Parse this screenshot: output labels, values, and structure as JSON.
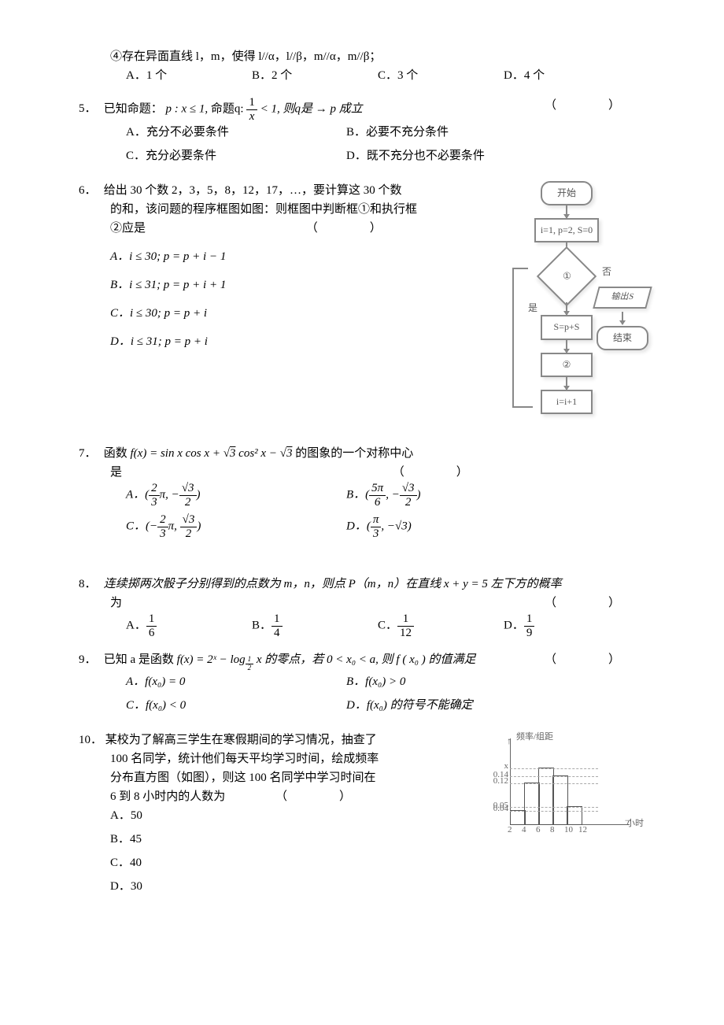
{
  "q4_cont": {
    "line1": "④存在异面直线 l，m，使得 l//α，l//β，m//α，m//β；",
    "A": "A．1 个",
    "B": "B．2 个",
    "C": "C．3 个",
    "D": "D．4 个"
  },
  "q5": {
    "num": "5．",
    "text_pre": "已知命题：",
    "p": "p : x ≤ 1,",
    "q_pre": "命题q:",
    "frac_n": "1",
    "frac_d": "x",
    "q_post": "< 1, 则q是 → p 成立",
    "A": "A．充分不必要条件",
    "B": "B．必要不充分条件",
    "C": "C．充分必要条件",
    "D": "D．既不充分也不必要条件",
    "paren": "（　　）"
  },
  "q6": {
    "num": "6．",
    "line1": "给出 30 个数 2，3，5，8，12，17，…，要计算这 30 个数",
    "line2": "的和，该问题的程序框图如图：则框图中判断框①和执行框",
    "line3": "②应是",
    "paren": "（　　）",
    "A": "A．i ≤ 30; p = p + i − 1",
    "B": "B．i ≤ 31; p = p + i + 1",
    "C": "C．i ≤ 30; p = p + i",
    "D": "D．i ≤ 31; p = p + i",
    "flow": {
      "start": "开始",
      "init": "i=1, p=2, S=0",
      "diamond": "①",
      "yes": "是",
      "no": "否",
      "sum": "S=p+S",
      "box2": "②",
      "inc": "i=i+1",
      "out": "输出S",
      "end": "结束"
    }
  },
  "q7": {
    "num": "7．",
    "text_pre": "函数 ",
    "fx": "f(x) = sin x cos x + √3 cos² x − √3",
    "text_post": " 的图象的一个对称中心",
    "line2": "是",
    "paren": "（　　）",
    "A_pre": "A．(",
    "A_n1": "2",
    "A_d1": "3",
    "A_mid": "π, −",
    "A_n2": "√3",
    "A_d2": "2",
    "A_post": ")",
    "B_pre": "B．(",
    "B_n1": "5π",
    "B_d1": "6",
    "B_mid": ", −",
    "B_n2": "√3",
    "B_d2": "2",
    "B_post": ")",
    "C_pre": "C．(−",
    "C_n1": "2",
    "C_d1": "3",
    "C_mid": "π, ",
    "C_n2": "√3",
    "C_d2": "2",
    "C_post": ")",
    "D_pre": "D．(",
    "D_n1": "π",
    "D_d1": "3",
    "D_mid": ", −√3)"
  },
  "q8": {
    "num": "8．",
    "text": "连续掷两次骰子分别得到的点数为 m，n，则点 P（m，n）在直线 x + y = 5 左下方的概率",
    "line2": "为",
    "paren": "（　　）",
    "A_n": "1",
    "A_d": "6",
    "A_l": "A．",
    "B_n": "1",
    "B_d": "4",
    "B_l": "B．",
    "C_n": "1",
    "C_d": "12",
    "C_l": "C．",
    "D_n": "1",
    "D_d": "9",
    "D_l": "D．"
  },
  "q9": {
    "num": "9．",
    "text_pre": "已知 a 是函数 ",
    "fx": "f(x) = 2ˣ − log",
    "sub_n": "1",
    "sub_d": "2",
    "fx_post": " x 的零点，若 0 < x₀ < a, 则 f ( x₀ ) 的值满足",
    "paren": "（　　）",
    "A": "A．f(x₀) = 0",
    "B": "B．f(x₀) > 0",
    "C": "C．f(x₀) < 0",
    "D": "D．f(x₀) 的符号不能确定"
  },
  "q10": {
    "num": "10．",
    "line1": "某校为了解高三学生在寒假期间的学习情况，抽查了",
    "line2": "100 名同学，统计他们每天平均学习时间，绘成频率",
    "line3": "分布直方图（如图），则这 100 名同学中学习时间在",
    "line4": "6 到 8 小时内的人数为",
    "paren": "（　　）",
    "A": "A．50",
    "B": "B．45",
    "C": "C．40",
    "D": "D．30",
    "hist": {
      "ylabel": "频率/组距",
      "xlabel": "小时",
      "yticks": [
        "0.04",
        "0.05",
        "0.12",
        "0.14",
        "x"
      ],
      "ytick_pos": [
        0.173,
        0.216,
        0.519,
        0.606,
        0.71
      ],
      "xticks": [
        "2",
        "4",
        "6",
        "8",
        "10",
        "12"
      ],
      "bars": [
        {
          "x": 2,
          "h": 0.173,
          "w": 18
        },
        {
          "x": 4,
          "h": 0.519,
          "w": 18
        },
        {
          "x": 6,
          "h": 0.71,
          "w": 18
        },
        {
          "x": 8,
          "h": 0.606,
          "w": 18
        },
        {
          "x": 10,
          "h": 0.216,
          "w": 18
        }
      ],
      "axis_color": "#666666",
      "bar_border": "#555555",
      "bg": "#ffffff"
    }
  }
}
